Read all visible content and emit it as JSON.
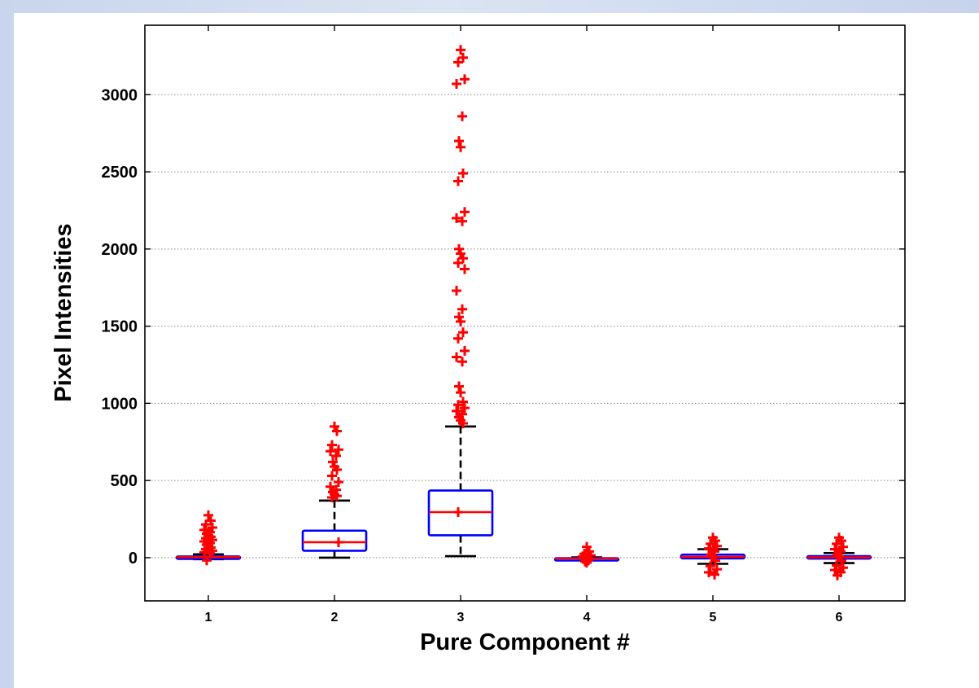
{
  "chart_data": {
    "type": "box",
    "xlabel": "Pure Component #",
    "ylabel": "Pixel Intensities",
    "categories": [
      "1",
      "2",
      "3",
      "4",
      "5",
      "6"
    ],
    "ylim": [
      -280,
      3450
    ],
    "yticks": [
      0,
      500,
      1000,
      1500,
      2000,
      2500,
      3000
    ],
    "grid": "y-dotted",
    "colors": {
      "box": "#0000ff",
      "median": "#ff0000",
      "whisker": "#000000",
      "outlier": "#ff0000"
    },
    "boxes": [
      {
        "category": "1",
        "q1": 0,
        "median": 3,
        "q3": 8,
        "whisker_low": -10,
        "whisker_high": 22,
        "outliers": [
          275,
          240,
          215,
          195,
          180,
          165,
          155,
          145,
          135,
          125,
          115,
          105,
          95,
          85,
          75,
          65,
          55,
          45,
          35,
          28,
          -18
        ]
      },
      {
        "category": "2",
        "q1": 45,
        "median": 100,
        "q3": 175,
        "whisker_low": 0,
        "whisker_high": 370,
        "outliers": [
          850,
          820,
          730,
          700,
          690,
          660,
          620,
          590,
          570,
          530,
          490,
          460,
          440,
          425,
          410,
          400,
          390,
          100
        ]
      },
      {
        "category": "3",
        "q1": 145,
        "median": 295,
        "q3": 435,
        "whisker_low": 10,
        "whisker_high": 850,
        "outliers": [
          3290,
          3240,
          3210,
          3100,
          3070,
          2860,
          2700,
          2660,
          2490,
          2440,
          2240,
          2200,
          2180,
          2000,
          1970,
          1940,
          1910,
          1870,
          1730,
          1610,
          1560,
          1530,
          1460,
          1420,
          1340,
          1300,
          1270,
          1110,
          1070,
          1010,
          990,
          970,
          950,
          930,
          910,
          890,
          870,
          295
        ]
      },
      {
        "category": "4",
        "q1": -7,
        "median": -5,
        "q3": -3,
        "whisker_low": -12,
        "whisker_high": 2,
        "outliers": [
          70,
          40,
          25,
          15,
          8,
          -18,
          -25,
          -32
        ]
      },
      {
        "category": "5",
        "q1": -5,
        "median": 5,
        "q3": 20,
        "whisker_low": -40,
        "whisker_high": 55,
        "outliers": [
          130,
          110,
          90,
          75,
          60,
          40,
          20,
          5,
          -20,
          -55,
          -75,
          -95,
          -110
        ]
      },
      {
        "category": "6",
        "q1": -5,
        "median": 2,
        "q3": 10,
        "whisker_low": -35,
        "whisker_high": 30,
        "outliers": [
          130,
          110,
          90,
          70,
          55,
          40,
          20,
          10,
          -20,
          -50,
          -65,
          -80,
          -95,
          -115
        ]
      }
    ]
  }
}
